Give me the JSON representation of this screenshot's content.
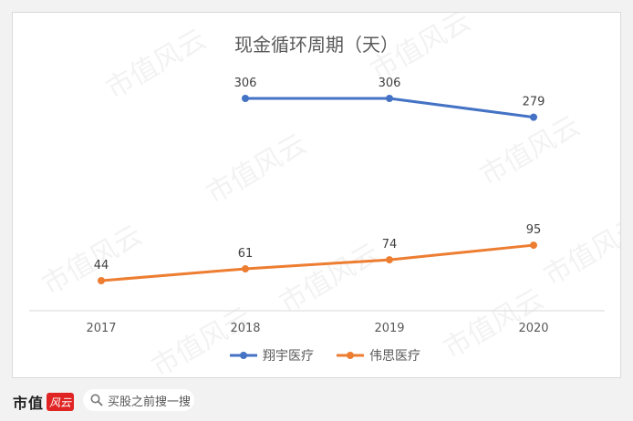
{
  "chart_data": {
    "type": "line",
    "title": "现金循环周期（天）",
    "categories": [
      "2017",
      "2018",
      "2019",
      "2020"
    ],
    "series": [
      {
        "name": "翔宇医疗",
        "color": "#4472c4",
        "values": [
          null,
          306,
          306,
          279
        ]
      },
      {
        "name": "伟思医疗",
        "color": "#ed7d31",
        "values": [
          44,
          61,
          74,
          95
        ]
      }
    ],
    "data_labels": true,
    "grid": false,
    "legend_position": "bottom"
  },
  "watermark": "市值风云",
  "footer": {
    "brand": "市值",
    "brand_mark": "风云",
    "search_icon": "search-icon",
    "search_placeholder": "买股之前搜一搜"
  }
}
